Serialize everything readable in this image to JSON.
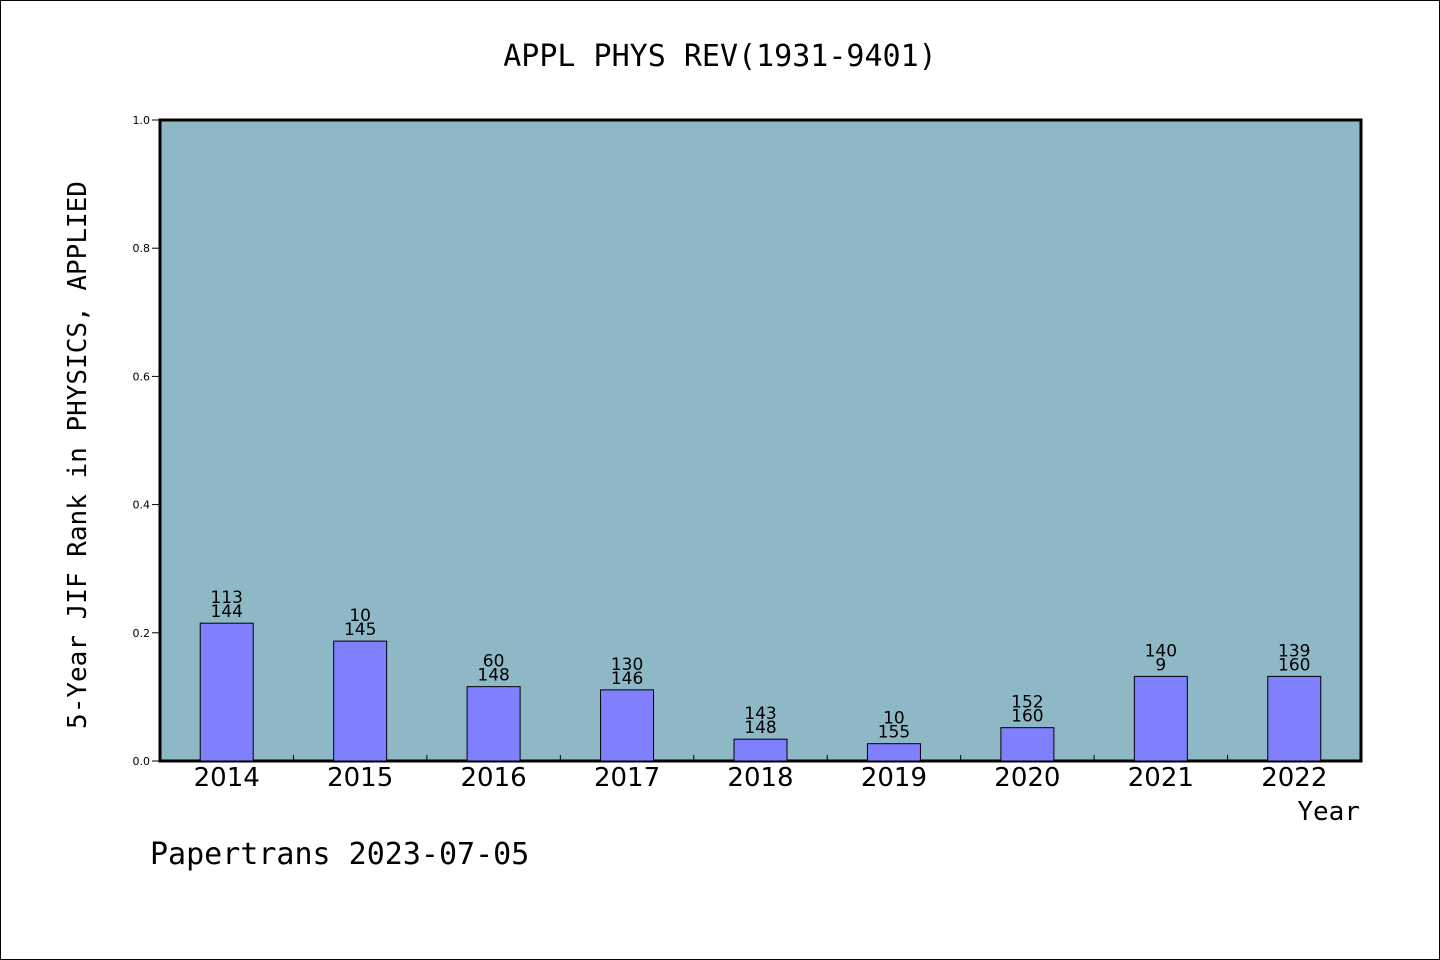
{
  "chart_data": {
    "type": "bar",
    "title": "APPL PHYS REV(1931-9401)",
    "xlabel": "Year",
    "ylabel": "5-Year JIF Rank in PHYSICS, APPLIED",
    "footer": "Papertrans 2023-07-05",
    "ylim": [
      0,
      1.0
    ],
    "yticks": [
      "0.0",
      "0.2",
      "0.4",
      "0.6",
      "0.8",
      "1.0"
    ],
    "grid": false,
    "categories": [
      "2014",
      "2015",
      "2016",
      "2017",
      "2018",
      "2019",
      "2020",
      "2021",
      "2022"
    ],
    "values": [
      0.215,
      0.187,
      0.116,
      0.111,
      0.034,
      0.027,
      0.052,
      0.132,
      0.132
    ],
    "labels": [
      [
        "113",
        "144"
      ],
      [
        "10",
        "145"
      ],
      [
        "60",
        "148"
      ],
      [
        "130",
        "146"
      ],
      [
        "143",
        "148"
      ],
      [
        "10",
        "155"
      ],
      [
        "152",
        "160"
      ],
      [
        "140",
        "9"
      ],
      [
        "139",
        "160"
      ]
    ],
    "colors": {
      "plot_background": "#8fb8c6",
      "bar_fill": "#8080ff",
      "bar_stroke": "#000000",
      "axis": "#000000"
    }
  }
}
